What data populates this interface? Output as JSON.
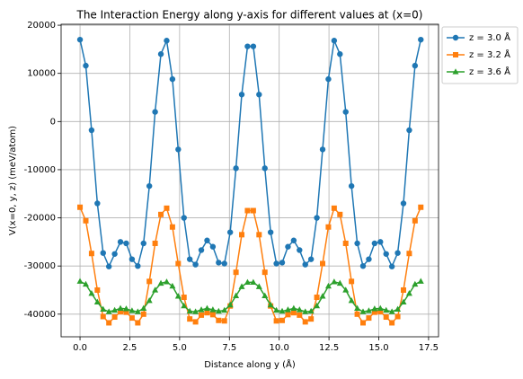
{
  "chart_data": {
    "type": "line",
    "title": "The Interaction Energy along y-axis for different values at (x=0)",
    "xlabel": "Distance along y (Å)",
    "ylabel": "V(x=0, y, z) (meV/atom)",
    "x": [
      0,
      0.29,
      0.58,
      0.87,
      1.16,
      1.45,
      1.74,
      2.03,
      2.32,
      2.61,
      2.9,
      3.19,
      3.48,
      3.77,
      4.06,
      4.35,
      4.64,
      4.93,
      5.22,
      5.51,
      5.8,
      6.09,
      6.38,
      6.67,
      6.96,
      7.25,
      7.54,
      7.83,
      8.12,
      8.41,
      8.7,
      8.99,
      9.28,
      9.57,
      9.86,
      10.15,
      10.44,
      10.73,
      11.02,
      11.31,
      11.6,
      11.89,
      12.18,
      12.47,
      12.76,
      13.05,
      13.34,
      13.63,
      13.92,
      14.21,
      14.5,
      14.79,
      15.08,
      15.37,
      15.66,
      15.95,
      16.24,
      16.53,
      16.82,
      17.11
    ],
    "series": [
      {
        "name": "z = 3.0 Å",
        "color": "#1f77b4",
        "marker": "circle",
        "values": [
          17000,
          11600,
          -1800,
          -17000,
          -27300,
          -30100,
          -27500,
          -25000,
          -25300,
          -28600,
          -30000,
          -25300,
          -13400,
          2000,
          14000,
          16800,
          8800,
          -5800,
          -20000,
          -28600,
          -29700,
          -26700,
          -24700,
          -26000,
          -29300,
          -29500,
          -23000,
          -9700,
          5600,
          15600,
          15600,
          5600,
          -9700,
          -23000,
          -29500,
          -29300,
          -26000,
          -24700,
          -26700,
          -29700,
          -28600,
          -20000,
          -5800,
          8800,
          16800,
          14000,
          2000,
          -13400,
          -25300,
          -30000,
          -28600,
          -25300,
          -25000,
          -27500,
          -30100,
          -27300,
          -17000,
          -1800,
          11600,
          17000
        ]
      },
      {
        "name": "z = 3.2 Å",
        "color": "#ff7f0e",
        "marker": "square",
        "values": [
          -17800,
          -20600,
          -27400,
          -35000,
          -40500,
          -41800,
          -40600,
          -39500,
          -39600,
          -40800,
          -41800,
          -40000,
          -33200,
          -25300,
          -19300,
          -18000,
          -21900,
          -29500,
          -36500,
          -41000,
          -41600,
          -40200,
          -39700,
          -40100,
          -41300,
          -41400,
          -38300,
          -31300,
          -23500,
          -18500,
          -18500,
          -23500,
          -31300,
          -38300,
          -41400,
          -41300,
          -40100,
          -39700,
          -40200,
          -41600,
          -41000,
          -36500,
          -29500,
          -21900,
          -18000,
          -19300,
          -25300,
          -33200,
          -40000,
          -41800,
          -40800,
          -39600,
          -39500,
          -40600,
          -41800,
          -40500,
          -35000,
          -27400,
          -20600,
          -17800
        ]
      },
      {
        "name": "z = 3.6 Å",
        "color": "#2ca02c",
        "marker": "triangle",
        "values": [
          -33200,
          -33800,
          -35700,
          -37500,
          -39000,
          -39500,
          -39200,
          -38800,
          -38900,
          -39300,
          -39500,
          -38800,
          -37200,
          -35000,
          -33600,
          -33300,
          -34200,
          -36300,
          -38300,
          -39400,
          -39500,
          -39100,
          -38800,
          -39100,
          -39400,
          -39200,
          -38100,
          -36200,
          -34300,
          -33400,
          -33400,
          -34300,
          -36200,
          -38100,
          -39200,
          -39400,
          -39100,
          -38800,
          -39100,
          -39500,
          -39400,
          -38300,
          -36300,
          -34200,
          -33300,
          -33600,
          -35000,
          -37200,
          -38800,
          -39500,
          -39300,
          -38900,
          -38800,
          -39200,
          -39500,
          -39000,
          -37500,
          -35700,
          -33800,
          -33200
        ]
      }
    ],
    "xlim": [
      -0.95,
      18.0
    ],
    "xticks": [
      {
        "value": 0,
        "label": "0.0"
      },
      2.5,
      {
        "value": 5,
        "label": "5.0"
      },
      7.5,
      {
        "value": 10,
        "label": "10.0"
      },
      12.5,
      {
        "value": 15,
        "label": "15.0"
      },
      17.5
    ],
    "ylim": [
      -44700,
      20200
    ],
    "yticks": [
      -40000,
      -30000,
      -20000,
      -10000,
      0,
      10000,
      20000
    ],
    "grid": true
  }
}
